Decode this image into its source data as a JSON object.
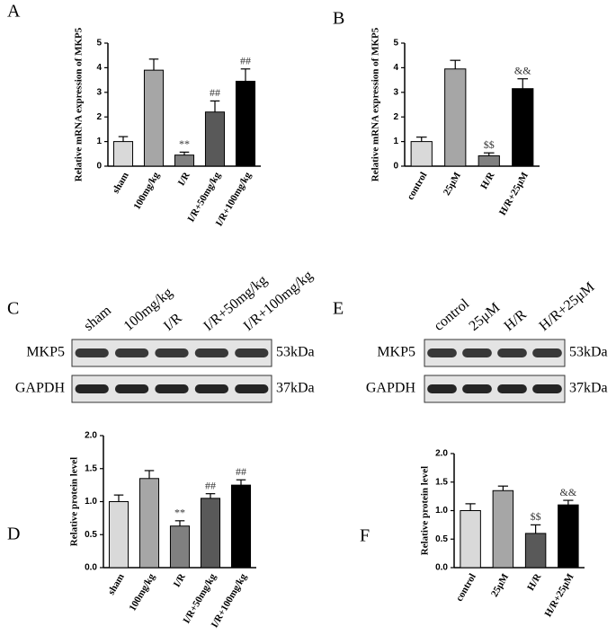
{
  "chart_data": [
    {
      "type": "bar",
      "panel": "A",
      "ylabel": "Relative mRNA expression of MKP5",
      "categories": [
        "sham",
        "100mg/kg",
        "I/R",
        "I/R+50mg/kg",
        "I/R+100mg/kg"
      ],
      "values": [
        1.0,
        3.9,
        0.45,
        2.2,
        3.45
      ],
      "errors": [
        0.2,
        0.45,
        0.12,
        0.45,
        0.5
      ],
      "annotations": [
        null,
        null,
        "**",
        "##",
        "##"
      ],
      "colors": [
        "#d9d9d9",
        "#a6a6a6",
        "#808080",
        "#595959",
        "#000000"
      ],
      "ylim": [
        0,
        5
      ],
      "yticks": [
        0,
        1,
        2,
        3,
        4,
        5
      ]
    },
    {
      "type": "bar",
      "panel": "B",
      "ylabel": "Relative mRNA expression of MKP5",
      "categories": [
        "control",
        "25μM",
        "H/R",
        "H/R+25μM"
      ],
      "values": [
        1.0,
        3.95,
        0.42,
        3.15
      ],
      "errors": [
        0.18,
        0.35,
        0.12,
        0.4
      ],
      "annotations": [
        null,
        null,
        "$$",
        "&&"
      ],
      "colors": [
        "#d9d9d9",
        "#a6a6a6",
        "#808080",
        "#000000"
      ],
      "ylim": [
        0,
        5
      ],
      "yticks": [
        0,
        1,
        2,
        3,
        4,
        5
      ]
    },
    {
      "type": "bar",
      "panel": "D",
      "ylabel": "Relative protein level",
      "categories": [
        "sham",
        "100mg/kg",
        "I/R",
        "I/R+50mg/kg",
        "I/R+100mg/kg"
      ],
      "values": [
        1.0,
        1.35,
        0.63,
        1.05,
        1.25
      ],
      "errors": [
        0.1,
        0.12,
        0.08,
        0.07,
        0.08
      ],
      "annotations": [
        null,
        null,
        "**",
        "##",
        "##"
      ],
      "colors": [
        "#d9d9d9",
        "#a6a6a6",
        "#808080",
        "#595959",
        "#000000"
      ],
      "ylim": [
        0,
        2
      ],
      "yticks": [
        {
          "value": 0,
          "label": "0.0"
        },
        0.5,
        {
          "value": 1,
          "label": "1.0"
        },
        1.5,
        {
          "value": 2,
          "label": "2.0"
        }
      ]
    },
    {
      "type": "bar",
      "panel": "F",
      "ylabel": "Relative protein level",
      "categories": [
        "control",
        "25μM",
        "H/R",
        "H/R+25μM"
      ],
      "values": [
        1.0,
        1.35,
        0.6,
        1.1
      ],
      "errors": [
        0.12,
        0.08,
        0.15,
        0.08
      ],
      "annotations": [
        null,
        null,
        "$$",
        "&&"
      ],
      "colors": [
        "#d9d9d9",
        "#a6a6a6",
        "#595959",
        "#000000"
      ],
      "ylim": [
        0,
        2
      ],
      "yticks": [
        {
          "value": 0,
          "label": "0.0"
        },
        0.5,
        {
          "value": 1,
          "label": "1.0"
        },
        1.5,
        {
          "value": 2,
          "label": "2.0"
        }
      ]
    }
  ],
  "blots": [
    {
      "panel": "C",
      "lanes": [
        "sham",
        "100mg/kg",
        "I/R",
        "I/R+50mg/kg",
        "I/R+100mg/kg"
      ],
      "rows": [
        {
          "protein": "MKP5",
          "size": "53kDa"
        },
        {
          "protein": "GAPDH",
          "size": "37kDa"
        }
      ]
    },
    {
      "panel": "E",
      "lanes": [
        "control",
        "25μM",
        "H/R",
        "H/R+25μM"
      ],
      "rows": [
        {
          "protein": "MKP5",
          "size": "53kDa"
        },
        {
          "protein": "GAPDH",
          "size": "37kDa"
        }
      ]
    }
  ]
}
